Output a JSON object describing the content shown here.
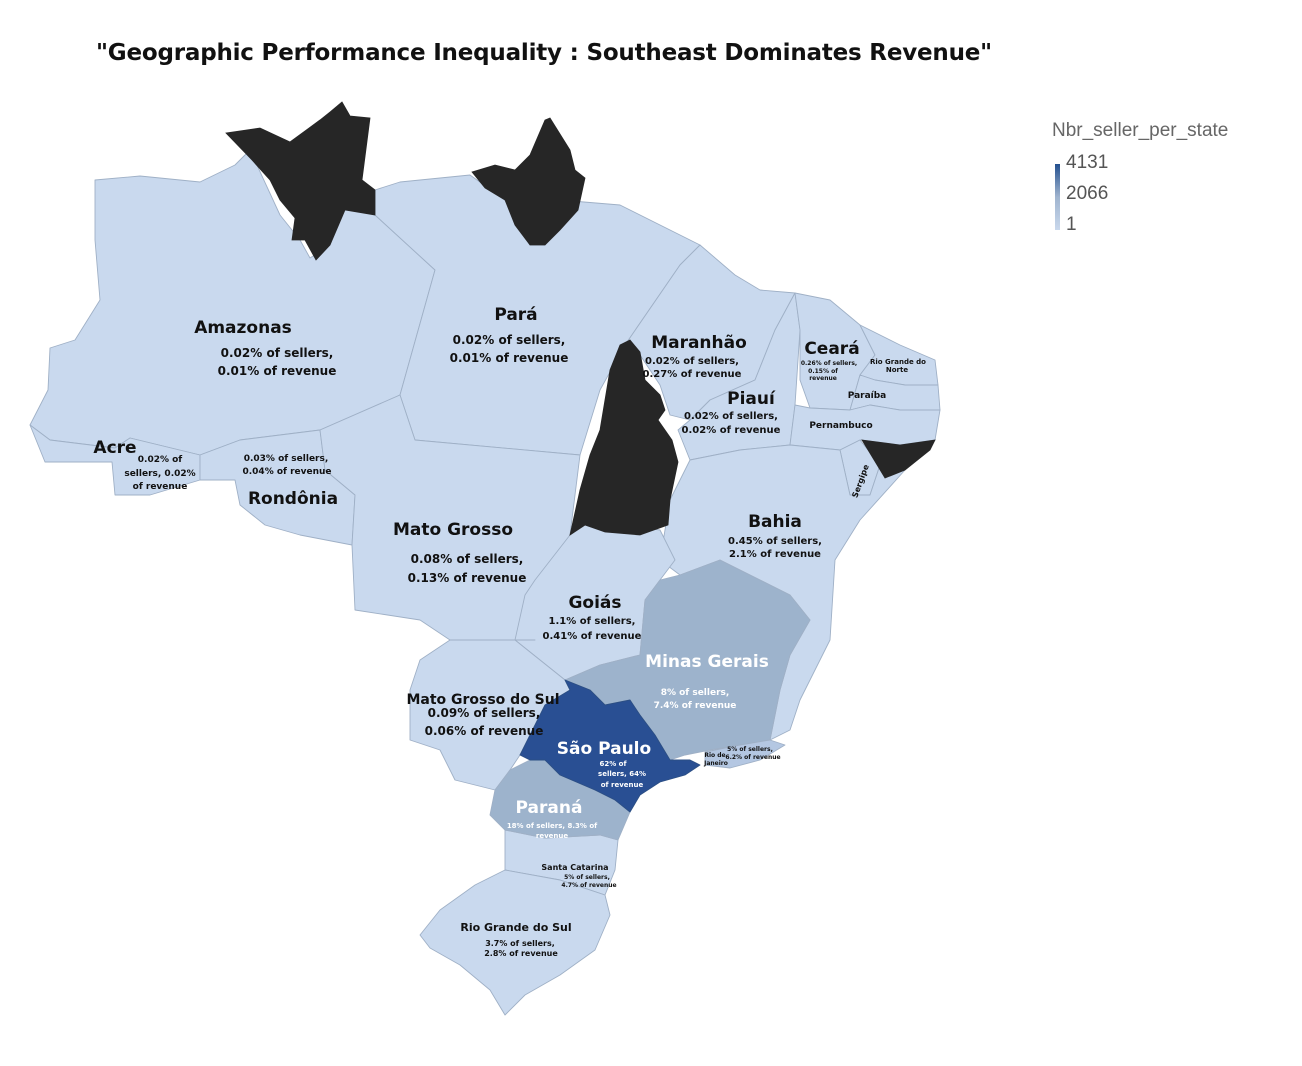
{
  "title": "\"Geographic Performance Inequality : Southeast Dominates Revenue\"",
  "legend": {
    "title": "Nbr_seller_per_state",
    "max": "4131",
    "mid": "2066",
    "min": "1"
  },
  "colors": {
    "no_data": "#262626",
    "low": "#c9d9ee",
    "mid": "#9db3cc",
    "high": "#294f93",
    "border": "#8a9ab0"
  },
  "states": {
    "amazonas": {
      "name": "Amazonas",
      "line1": "0.02% of sellers,",
      "line2": "0.01% of revenue"
    },
    "para": {
      "name": "Pará",
      "line1": "0.02% of sellers,",
      "line2": "0.01% of revenue"
    },
    "maranhao": {
      "name": "Maranhão",
      "line1": "0.02% of sellers,",
      "line2": "0.27% of revenue"
    },
    "ceara": {
      "name": "Ceará",
      "line1": "0.26% of sellers,",
      "line2": "0.15% of",
      "line3": "revenue"
    },
    "rio_grande_do_norte": {
      "name1": "Rio Grande do",
      "name2": "Norte"
    },
    "paraiba": {
      "name": "Paraíba"
    },
    "pernambuco": {
      "name": "Pernambuco"
    },
    "sergipe": {
      "name": "Sergipe"
    },
    "piaui": {
      "name": "Piauí",
      "line1": "0.02% of sellers,",
      "line2": "0.02% of revenue"
    },
    "acre": {
      "name": "Acre",
      "line1": "0.02% of",
      "line2": "sellers, 0.02%",
      "line3": "of revenue"
    },
    "rondonia": {
      "name": "Rondônia",
      "line1": "0.03% of sellers,",
      "line2": "0.04% of revenue"
    },
    "mato_grosso": {
      "name": "Mato Grosso",
      "line1": "0.08% of sellers,",
      "line2": "0.13% of revenue"
    },
    "bahia": {
      "name": "Bahia",
      "line1": "0.45% of sellers,",
      "line2": "2.1% of revenue"
    },
    "goias": {
      "name": "Goiás",
      "line1": "1.1% of sellers,",
      "line2": "0.41% of revenue"
    },
    "minas_gerais": {
      "name": "Minas Gerais",
      "line1": "8% of sellers,",
      "line2": "7.4% of revenue"
    },
    "mato_grosso_do_sul": {
      "name": "Mato Grosso do Sul",
      "line1": "0.09% of sellers,",
      "line2": "0.06% of revenue"
    },
    "sao_paulo": {
      "name": "São Paulo",
      "line1": "62% of",
      "line2": "sellers, 64%",
      "line3": "of revenue"
    },
    "rio_de_janeiro": {
      "name1": "Rio de",
      "name2": "Janeiro",
      "line1": "5% of sellers,",
      "line2": "6.2% of revenue"
    },
    "parana": {
      "name": "Paraná",
      "line1": "18% of sellers, 8.3% of",
      "line2": "revenue"
    },
    "santa_catarina": {
      "name": "Santa Catarina",
      "line1": "5% of sellers,",
      "line2": "4.7% of revenue"
    },
    "rio_grande_do_sul": {
      "name": "Rio Grande do Sul",
      "line1": "3.7% of sellers,",
      "line2": "2.8% of revenue"
    }
  }
}
